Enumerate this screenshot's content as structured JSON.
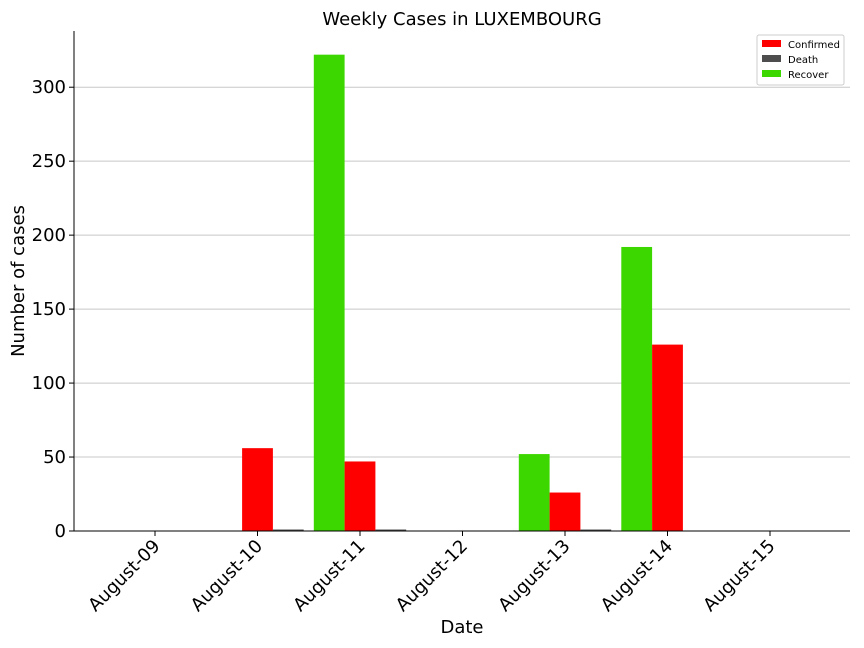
{
  "chart_data": {
    "type": "bar",
    "title": "Weekly Cases in LUXEMBOURG",
    "xlabel": "Date",
    "ylabel": "Number of cases",
    "categories": [
      "August-09",
      "August-10",
      "August-11",
      "August-12",
      "August-13",
      "August-14",
      "August-15"
    ],
    "series": [
      {
        "name": "Recover",
        "color": "#3dd700",
        "values": [
          0,
          0,
          322,
          0,
          52,
          192,
          0
        ]
      },
      {
        "name": "Confirmed",
        "color": "#ff0000",
        "values": [
          0,
          56,
          47,
          0,
          26,
          126,
          0
        ]
      },
      {
        "name": "Death",
        "color": "#4d4d4d",
        "values": [
          0,
          1,
          1,
          0,
          1,
          0,
          0
        ]
      }
    ],
    "legend_order": [
      "Confirmed",
      "Death",
      "Recover"
    ],
    "ylim": [
      0,
      338
    ],
    "yticks": [
      0,
      50,
      100,
      150,
      200,
      250,
      300
    ],
    "grid": "horizontal",
    "legend_position": "top-right"
  }
}
